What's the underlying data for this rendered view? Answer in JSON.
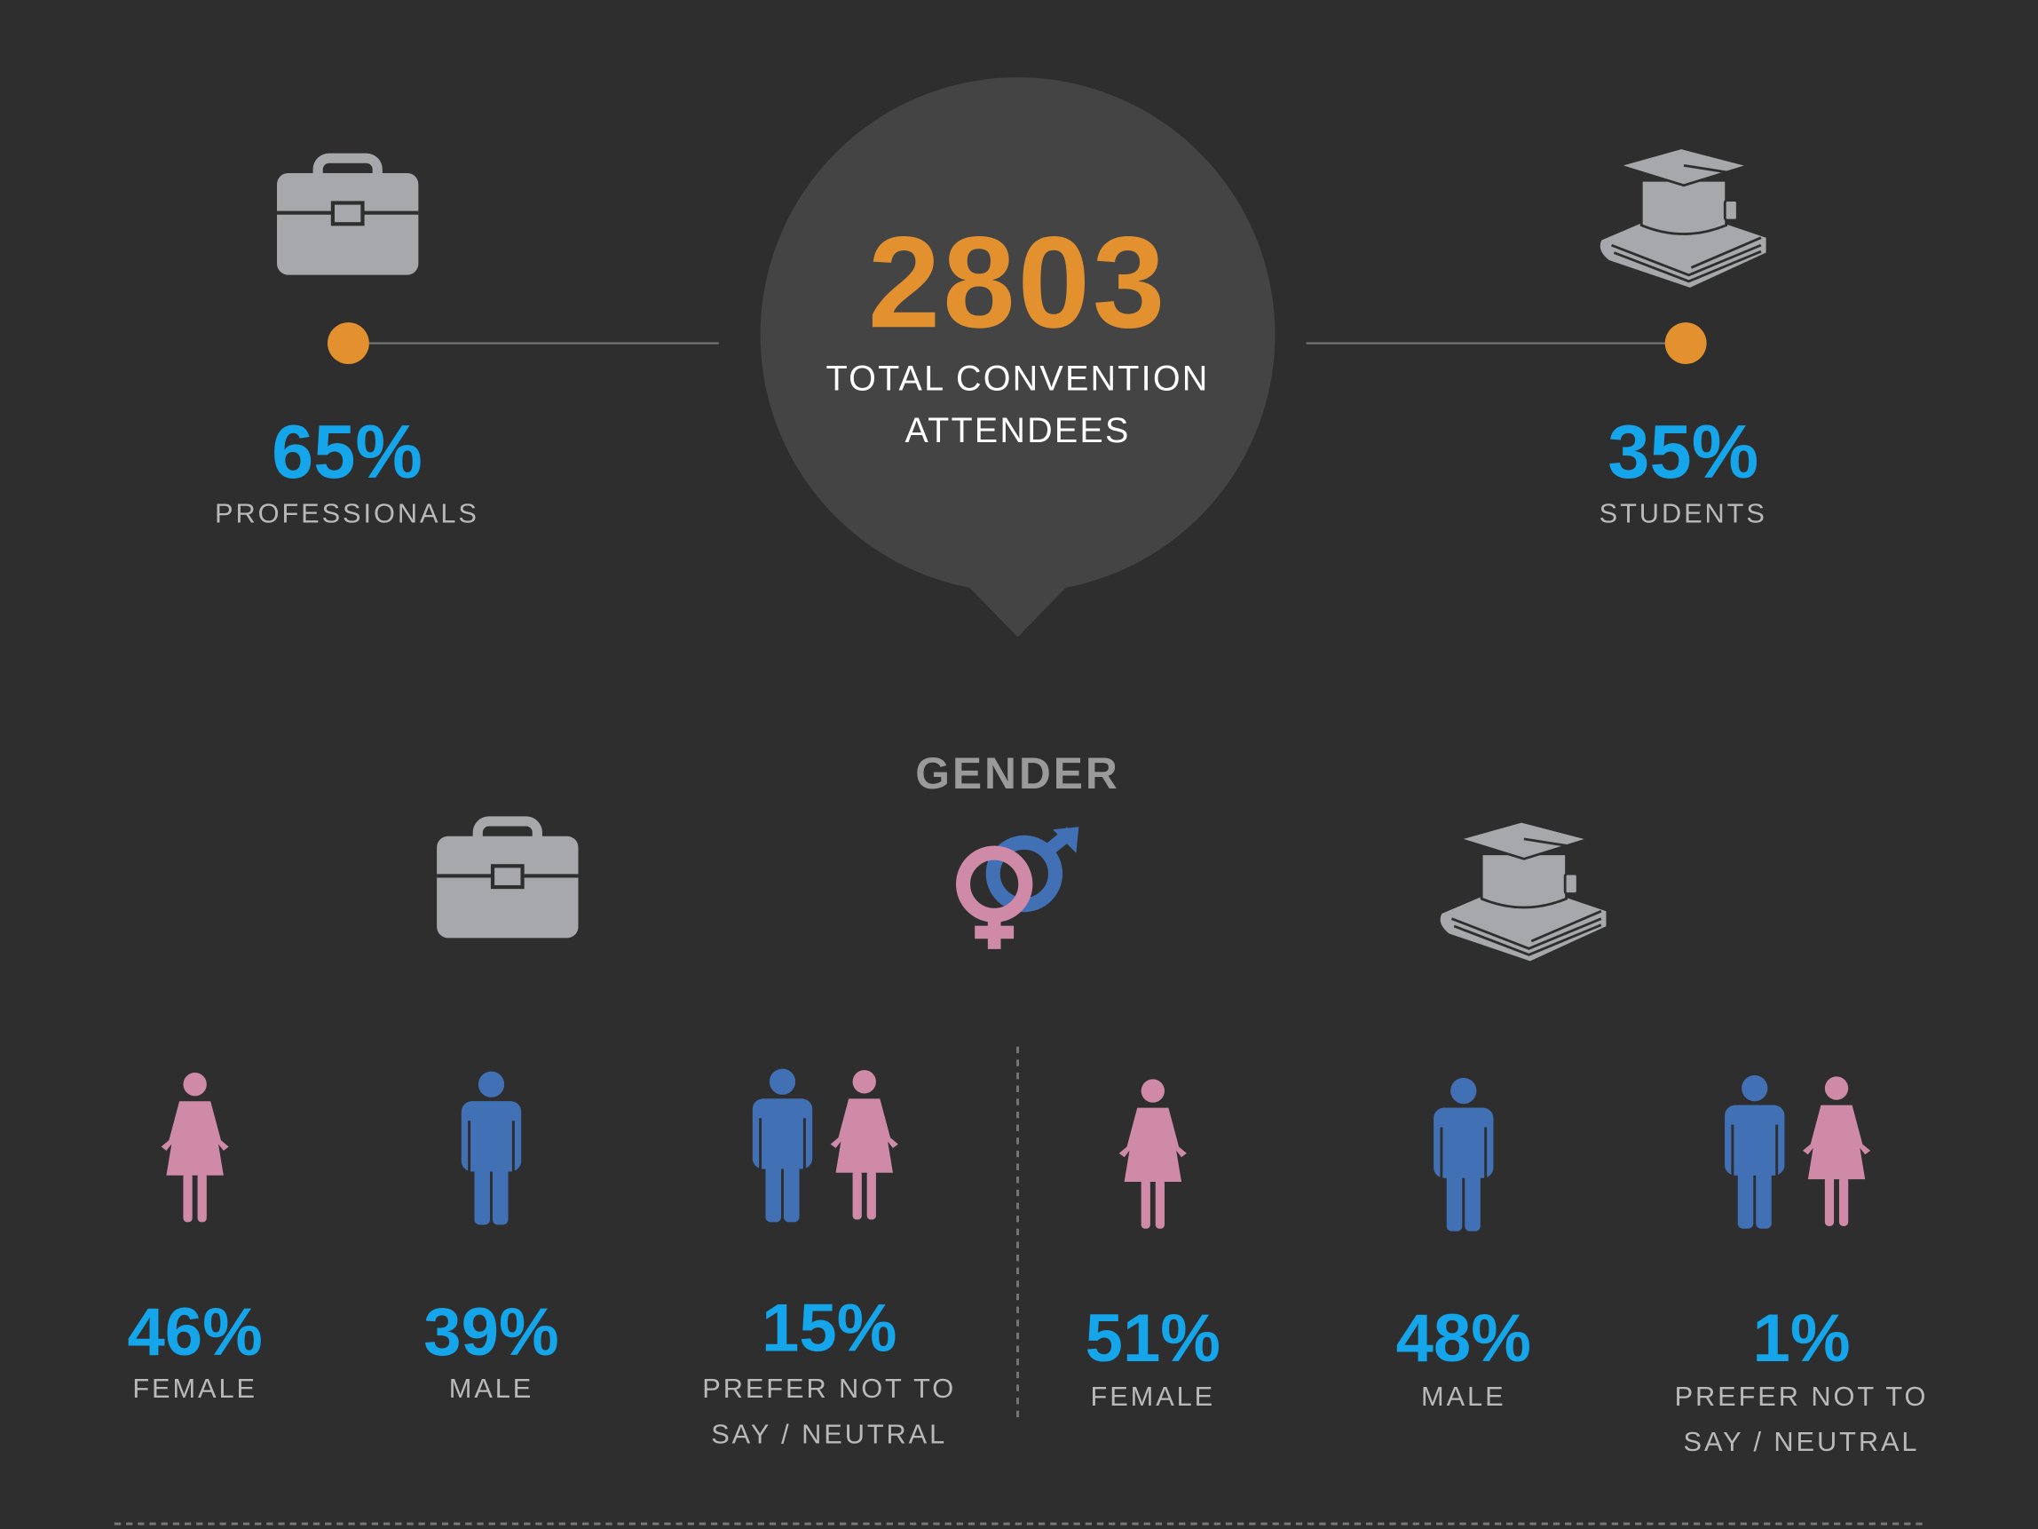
{
  "total": {
    "value": "2803",
    "label": "TOTAL CONVENTION ATTENDEES"
  },
  "split": [
    {
      "percent": "65%",
      "label": "PROFESSIONALS"
    },
    {
      "percent": "35%",
      "label": "STUDENTS"
    }
  ],
  "gender": {
    "title": "GENDER",
    "professionals": [
      {
        "percent": "46%",
        "label": "FEMALE"
      },
      {
        "percent": "39%",
        "label": "MALE"
      },
      {
        "percent": "15%",
        "label": "PREFER NOT TO SAY / NEUTRAL"
      }
    ],
    "students": [
      {
        "percent": "51%",
        "label": "FEMALE"
      },
      {
        "percent": "48%",
        "label": "MALE"
      },
      {
        "percent": "1%",
        "label": "PREFER NOT TO SAY / NEUTRAL"
      }
    ]
  }
}
